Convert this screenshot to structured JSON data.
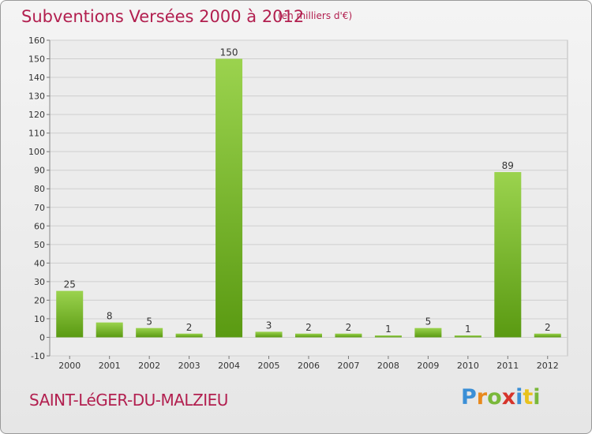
{
  "header": {
    "title": "Subventions Versées 2000 à 2012",
    "unit_note": "(en milliers d'€)"
  },
  "footer": {
    "commune": "SAINT-LéGER-DU-MALZIEU",
    "logo": [
      "P",
      "r",
      "o",
      "x",
      "i",
      "t",
      "i"
    ]
  },
  "colors": {
    "title": "#b21f4f",
    "bar_top": "#9bd34e",
    "bar_bottom": "#5a9a12",
    "grid": "#cfcfcf",
    "plot_bg": "#ececec"
  },
  "chart_data": {
    "type": "bar",
    "title": "Subventions Versées 2000 à 2012",
    "subtitle": "(en milliers d'€)",
    "categories": [
      "2000",
      "2001",
      "2002",
      "2003",
      "2004",
      "2005",
      "2006",
      "2007",
      "2008",
      "2009",
      "2010",
      "2011",
      "2012"
    ],
    "values": [
      25,
      8,
      5,
      2,
      150,
      3,
      2,
      2,
      1,
      5,
      1,
      89,
      2
    ],
    "data_labels": [
      "25",
      "8",
      "5",
      "2",
      "150",
      "3",
      "2",
      "2",
      "1",
      "5",
      "1",
      "89",
      "2"
    ],
    "ylim": [
      -10,
      160
    ],
    "yticks": [
      -10,
      0,
      10,
      20,
      30,
      40,
      50,
      60,
      70,
      80,
      90,
      100,
      110,
      120,
      130,
      140,
      150,
      160
    ],
    "xlabel": "",
    "ylabel": "",
    "grid": true,
    "legend": "none"
  }
}
